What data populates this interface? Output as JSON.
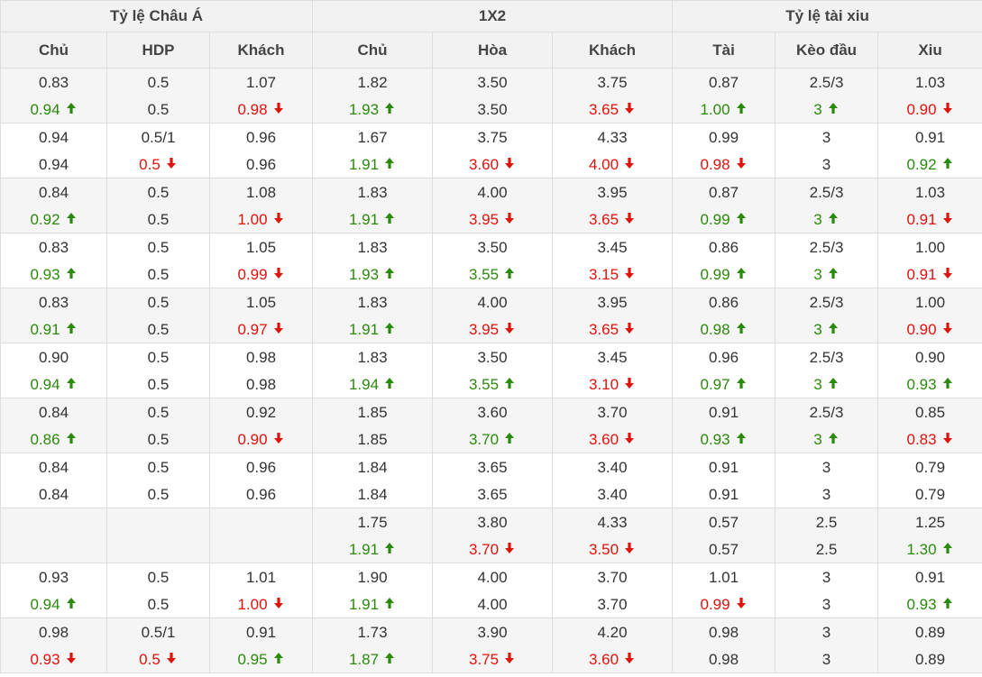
{
  "header": {
    "groups": [
      "Tỷ lệ Châu Á",
      "1X2",
      "Tỷ lệ tài xiu"
    ],
    "columns": [
      "Chủ",
      "HDP",
      "Khách",
      "Chủ",
      "Hòa",
      "Khách",
      "Tài",
      "Kèo đầu",
      "Xiu"
    ]
  },
  "colors": {
    "up": "#2a8a0c",
    "down": "#e0120c",
    "header_bg": "#f2f2f2",
    "shade_bg": "#f5f5f5"
  },
  "icons": {
    "up": "arrow-up-icon",
    "down": "arrow-down-icon"
  },
  "rows": [
    {
      "shade": true,
      "cells": [
        {
          "a": "0.83",
          "b": "0.94",
          "d": "up"
        },
        {
          "a": "0.5",
          "b": "0.5"
        },
        {
          "a": "1.07",
          "b": "0.98",
          "d": "down"
        },
        {
          "a": "1.82",
          "b": "1.93",
          "d": "up"
        },
        {
          "a": "3.50",
          "b": "3.50"
        },
        {
          "a": "3.75",
          "b": "3.65",
          "d": "down"
        },
        {
          "a": "0.87",
          "b": "1.00",
          "d": "up"
        },
        {
          "a": "2.5/3",
          "b": "3",
          "d": "up"
        },
        {
          "a": "1.03",
          "b": "0.90",
          "d": "down"
        }
      ]
    },
    {
      "shade": false,
      "cells": [
        {
          "a": "0.94",
          "b": "0.94"
        },
        {
          "a": "0.5/1",
          "b": "0.5",
          "d": "down"
        },
        {
          "a": "0.96",
          "b": "0.96"
        },
        {
          "a": "1.67",
          "b": "1.91",
          "d": "up"
        },
        {
          "a": "3.75",
          "b": "3.60",
          "d": "down"
        },
        {
          "a": "4.33",
          "b": "4.00",
          "d": "down"
        },
        {
          "a": "0.99",
          "b": "0.98",
          "d": "down"
        },
        {
          "a": "3",
          "b": "3"
        },
        {
          "a": "0.91",
          "b": "0.92",
          "d": "up"
        }
      ]
    },
    {
      "shade": true,
      "cells": [
        {
          "a": "0.84",
          "b": "0.92",
          "d": "up"
        },
        {
          "a": "0.5",
          "b": "0.5"
        },
        {
          "a": "1.08",
          "b": "1.00",
          "d": "down"
        },
        {
          "a": "1.83",
          "b": "1.91",
          "d": "up"
        },
        {
          "a": "4.00",
          "b": "3.95",
          "d": "down"
        },
        {
          "a": "3.95",
          "b": "3.65",
          "d": "down"
        },
        {
          "a": "0.87",
          "b": "0.99",
          "d": "up"
        },
        {
          "a": "2.5/3",
          "b": "3",
          "d": "up"
        },
        {
          "a": "1.03",
          "b": "0.91",
          "d": "down"
        }
      ]
    },
    {
      "shade": false,
      "cells": [
        {
          "a": "0.83",
          "b": "0.93",
          "d": "up"
        },
        {
          "a": "0.5",
          "b": "0.5"
        },
        {
          "a": "1.05",
          "b": "0.99",
          "d": "down"
        },
        {
          "a": "1.83",
          "b": "1.93",
          "d": "up"
        },
        {
          "a": "3.50",
          "b": "3.55",
          "d": "up"
        },
        {
          "a": "3.45",
          "b": "3.15",
          "d": "down"
        },
        {
          "a": "0.86",
          "b": "0.99",
          "d": "up"
        },
        {
          "a": "2.5/3",
          "b": "3",
          "d": "up"
        },
        {
          "a": "1.00",
          "b": "0.91",
          "d": "down"
        }
      ]
    },
    {
      "shade": true,
      "cells": [
        {
          "a": "0.83",
          "b": "0.91",
          "d": "up"
        },
        {
          "a": "0.5",
          "b": "0.5"
        },
        {
          "a": "1.05",
          "b": "0.97",
          "d": "down"
        },
        {
          "a": "1.83",
          "b": "1.91",
          "d": "up"
        },
        {
          "a": "4.00",
          "b": "3.95",
          "d": "down"
        },
        {
          "a": "3.95",
          "b": "3.65",
          "d": "down"
        },
        {
          "a": "0.86",
          "b": "0.98",
          "d": "up"
        },
        {
          "a": "2.5/3",
          "b": "3",
          "d": "up"
        },
        {
          "a": "1.00",
          "b": "0.90",
          "d": "down"
        }
      ]
    },
    {
      "shade": false,
      "cells": [
        {
          "a": "0.90",
          "b": "0.94",
          "d": "up"
        },
        {
          "a": "0.5",
          "b": "0.5"
        },
        {
          "a": "0.98",
          "b": "0.98"
        },
        {
          "a": "1.83",
          "b": "1.94",
          "d": "up"
        },
        {
          "a": "3.50",
          "b": "3.55",
          "d": "up"
        },
        {
          "a": "3.45",
          "b": "3.10",
          "d": "down"
        },
        {
          "a": "0.96",
          "b": "0.97",
          "d": "up"
        },
        {
          "a": "2.5/3",
          "b": "3",
          "d": "up"
        },
        {
          "a": "0.90",
          "b": "0.93",
          "d": "up"
        }
      ]
    },
    {
      "shade": true,
      "cells": [
        {
          "a": "0.84",
          "b": "0.86",
          "d": "up"
        },
        {
          "a": "0.5",
          "b": "0.5"
        },
        {
          "a": "0.92",
          "b": "0.90",
          "d": "down"
        },
        {
          "a": "1.85",
          "b": "1.85"
        },
        {
          "a": "3.60",
          "b": "3.70",
          "d": "up"
        },
        {
          "a": "3.70",
          "b": "3.60",
          "d": "down"
        },
        {
          "a": "0.91",
          "b": "0.93",
          "d": "up"
        },
        {
          "a": "2.5/3",
          "b": "3",
          "d": "up"
        },
        {
          "a": "0.85",
          "b": "0.83",
          "d": "down"
        }
      ]
    },
    {
      "shade": false,
      "cells": [
        {
          "a": "0.84",
          "b": "0.84"
        },
        {
          "a": "0.5",
          "b": "0.5"
        },
        {
          "a": "0.96",
          "b": "0.96"
        },
        {
          "a": "1.84",
          "b": "1.84"
        },
        {
          "a": "3.65",
          "b": "3.65"
        },
        {
          "a": "3.40",
          "b": "3.40"
        },
        {
          "a": "0.91",
          "b": "0.91"
        },
        {
          "a": "3",
          "b": "3"
        },
        {
          "a": "0.79",
          "b": "0.79"
        }
      ]
    },
    {
      "shade": true,
      "cells": [
        {
          "a": "",
          "b": ""
        },
        {
          "a": "",
          "b": ""
        },
        {
          "a": "",
          "b": ""
        },
        {
          "a": "1.75",
          "b": "1.91",
          "d": "up"
        },
        {
          "a": "3.80",
          "b": "3.70",
          "d": "down"
        },
        {
          "a": "4.33",
          "b": "3.50",
          "d": "down"
        },
        {
          "a": "0.57",
          "b": "0.57"
        },
        {
          "a": "2.5",
          "b": "2.5"
        },
        {
          "a": "1.25",
          "b": "1.30",
          "d": "up"
        }
      ]
    },
    {
      "shade": false,
      "cells": [
        {
          "a": "0.93",
          "b": "0.94",
          "d": "up"
        },
        {
          "a": "0.5",
          "b": "0.5"
        },
        {
          "a": "1.01",
          "b": "1.00",
          "d": "down"
        },
        {
          "a": "1.90",
          "b": "1.91",
          "d": "up"
        },
        {
          "a": "4.00",
          "b": "4.00"
        },
        {
          "a": "3.70",
          "b": "3.70"
        },
        {
          "a": "1.01",
          "b": "0.99",
          "d": "down"
        },
        {
          "a": "3",
          "b": "3"
        },
        {
          "a": "0.91",
          "b": "0.93",
          "d": "up"
        }
      ]
    },
    {
      "shade": true,
      "cells": [
        {
          "a": "0.98",
          "b": "0.93",
          "d": "down"
        },
        {
          "a": "0.5/1",
          "b": "0.5",
          "d": "down"
        },
        {
          "a": "0.91",
          "b": "0.95",
          "d": "up"
        },
        {
          "a": "1.73",
          "b": "1.87",
          "d": "up"
        },
        {
          "a": "3.90",
          "b": "3.75",
          "d": "down"
        },
        {
          "a": "4.20",
          "b": "3.60",
          "d": "down"
        },
        {
          "a": "0.98",
          "b": "0.98"
        },
        {
          "a": "3",
          "b": "3"
        },
        {
          "a": "0.89",
          "b": "0.89"
        }
      ]
    }
  ]
}
